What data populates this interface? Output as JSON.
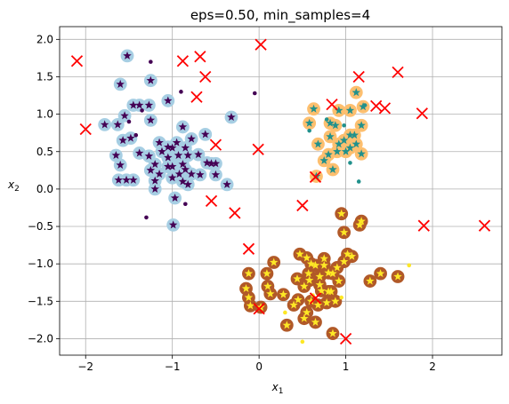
{
  "chart_data": {
    "type": "scatter",
    "title": "eps=0.50, min_samples=4",
    "xlabel": "x",
    "xlabel_sub": "1",
    "ylabel": "x",
    "ylabel_sub": "2",
    "xlim": [
      -2.3,
      2.8
    ],
    "ylim": [
      -2.22,
      2.17
    ],
    "xticks": [
      -2,
      -1,
      0,
      1,
      2
    ],
    "yticks": [
      -2.0,
      -1.5,
      -1.0,
      -0.5,
      0.0,
      0.5,
      1.0,
      1.5,
      2.0
    ],
    "xtick_labels": [
      "−2",
      "−1",
      "0",
      "1",
      "2"
    ],
    "ytick_labels": [
      "−2.0",
      "−1.5",
      "−1.0",
      "−0.5",
      "0.0",
      "0.5",
      "1.0",
      "1.5",
      "2.0"
    ],
    "grid": true,
    "colors": {
      "cluster0_halo": "#a6cee3",
      "cluster0_point": "#440154",
      "cluster1_halo": "#fdbf6f",
      "cluster1_point": "#21918c",
      "cluster2_halo": "#b15928",
      "cluster2_point": "#fde725",
      "anomaly": "#ff0000"
    },
    "clusters": [
      {
        "core": [
          [
            -1.52,
            1.78
          ],
          [
            -1.6,
            1.4
          ],
          [
            -1.25,
            1.45
          ],
          [
            -1.78,
            0.86
          ],
          [
            -1.63,
            0.86
          ],
          [
            -1.55,
            0.98
          ],
          [
            -1.45,
            1.12
          ],
          [
            -1.38,
            1.12
          ],
          [
            -1.27,
            1.12
          ],
          [
            -1.25,
            0.92
          ],
          [
            -1.05,
            1.18
          ],
          [
            -1.48,
            0.68
          ],
          [
            -1.57,
            0.65
          ],
          [
            -1.65,
            0.45
          ],
          [
            -1.6,
            0.32
          ],
          [
            -1.62,
            0.12
          ],
          [
            -1.53,
            0.12
          ],
          [
            -1.45,
            0.12
          ],
          [
            -1.27,
            0.44
          ],
          [
            -1.2,
            0.33
          ],
          [
            -1.15,
            0.62
          ],
          [
            -1.12,
            0.5
          ],
          [
            -1.05,
            0.56
          ],
          [
            -1.0,
            0.55
          ],
          [
            -0.95,
            0.62
          ],
          [
            -0.93,
            0.45
          ],
          [
            -0.88,
            0.33
          ],
          [
            -0.85,
            0.26
          ],
          [
            -0.82,
            0.45
          ],
          [
            -0.7,
            0.46
          ],
          [
            -0.78,
            0.67
          ],
          [
            -0.88,
            0.83
          ],
          [
            -0.62,
            0.73
          ],
          [
            -0.6,
            0.35
          ],
          [
            -0.55,
            0.34
          ],
          [
            -0.5,
            0.34
          ],
          [
            -0.5,
            0.19
          ],
          [
            -0.68,
            0.19
          ],
          [
            -0.88,
            0.1
          ],
          [
            -0.82,
            0.06
          ],
          [
            -1.05,
            0.3
          ],
          [
            -1.0,
            0.15
          ],
          [
            -0.97,
            -0.12
          ],
          [
            -0.99,
            -0.48
          ],
          [
            -1.2,
            0.11
          ],
          [
            -1.2,
            0.0
          ],
          [
            -0.32,
            0.96
          ],
          [
            -0.37,
            0.06
          ],
          [
            -1.05,
            0.42
          ],
          [
            -1.38,
            0.48
          ],
          [
            -1.15,
            0.2
          ],
          [
            -0.78,
            0.2
          ],
          [
            -1.0,
            0.3
          ],
          [
            -0.92,
            0.2
          ],
          [
            -1.25,
            0.25
          ],
          [
            -0.85,
            0.55
          ]
        ],
        "non_core": [
          [
            -1.25,
            1.7
          ],
          [
            -1.35,
            1.05
          ],
          [
            -0.9,
            1.3
          ],
          [
            -0.05,
            1.28
          ],
          [
            -1.5,
            0.9
          ],
          [
            -1.42,
            0.72
          ],
          [
            -1.3,
            -0.38
          ],
          [
            -0.85,
            -0.2
          ]
        ]
      },
      {
        "core": [
          [
            0.58,
            0.88
          ],
          [
            0.63,
            1.07
          ],
          [
            0.82,
            0.88
          ],
          [
            0.88,
            0.85
          ],
          [
            0.92,
            1.05
          ],
          [
            1.05,
            1.05
          ],
          [
            1.12,
            1.29
          ],
          [
            1.2,
            1.1
          ],
          [
            1.18,
            0.85
          ],
          [
            1.05,
            0.72
          ],
          [
            0.82,
            0.7
          ],
          [
            0.98,
            0.65
          ],
          [
            0.92,
            0.6
          ],
          [
            0.9,
            0.5
          ],
          [
            1.0,
            0.5
          ],
          [
            1.05,
            0.55
          ],
          [
            1.12,
            0.6
          ],
          [
            1.18,
            0.47
          ],
          [
            0.8,
            0.46
          ],
          [
            0.75,
            0.38
          ],
          [
            0.68,
            0.6
          ],
          [
            0.66,
            0.17
          ],
          [
            0.85,
            0.26
          ],
          [
            1.1,
            0.72
          ]
        ],
        "non_core": [
          [
            0.98,
            0.85
          ],
          [
            1.15,
            0.1
          ],
          [
            0.58,
            0.78
          ],
          [
            1.22,
            1.12
          ],
          [
            0.78,
            0.93
          ],
          [
            1.05,
            0.35
          ]
        ]
      },
      {
        "core": [
          [
            0.17,
            -0.98
          ],
          [
            -0.12,
            -1.13
          ],
          [
            0.09,
            -1.13
          ],
          [
            0.1,
            -1.3
          ],
          [
            -0.15,
            -1.33
          ],
          [
            -0.12,
            -1.45
          ],
          [
            -0.1,
            -1.56
          ],
          [
            0.02,
            -1.58
          ],
          [
            0.13,
            -1.4
          ],
          [
            0.28,
            -1.41
          ],
          [
            0.4,
            -1.55
          ],
          [
            0.45,
            -1.48
          ],
          [
            0.32,
            -1.82
          ],
          [
            0.47,
            -0.87
          ],
          [
            0.55,
            -0.92
          ],
          [
            0.65,
            -1.02
          ],
          [
            0.57,
            -1.13
          ],
          [
            0.7,
            -1.17
          ],
          [
            0.75,
            -1.02
          ],
          [
            0.75,
            -0.93
          ],
          [
            0.8,
            -1.12
          ],
          [
            0.85,
            -1.13
          ],
          [
            0.92,
            -1.23
          ],
          [
            0.98,
            -0.97
          ],
          [
            1.02,
            -0.87
          ],
          [
            1.07,
            -0.9
          ],
          [
            1.18,
            -0.43
          ],
          [
            1.16,
            -0.48
          ],
          [
            0.98,
            -0.58
          ],
          [
            0.95,
            -0.33
          ],
          [
            0.8,
            -1.37
          ],
          [
            0.83,
            -1.37
          ],
          [
            0.88,
            -1.5
          ],
          [
            0.78,
            -1.52
          ],
          [
            0.68,
            -1.55
          ],
          [
            0.6,
            -1.5
          ],
          [
            0.55,
            -1.65
          ],
          [
            0.52,
            -1.73
          ],
          [
            0.65,
            -1.78
          ],
          [
            0.85,
            -1.93
          ],
          [
            1.4,
            -1.13
          ],
          [
            1.6,
            -1.17
          ],
          [
            1.28,
            -1.23
          ],
          [
            0.52,
            -1.3
          ],
          [
            0.58,
            -1.22
          ],
          [
            0.7,
            -1.28
          ],
          [
            0.6,
            -1.0
          ],
          [
            0.72,
            -1.36
          ],
          [
            0.9,
            -1.05
          ],
          [
            0.44,
            -1.2
          ]
        ],
        "non_core": [
          [
            0.5,
            -2.04
          ],
          [
            1.73,
            -1.02
          ],
          [
            0.95,
            -1.45
          ],
          [
            0.3,
            -1.65
          ],
          [
            0.62,
            -1.42
          ]
        ]
      }
    ],
    "anomalies": [
      [
        -2.1,
        1.71
      ],
      [
        -2.0,
        0.8
      ],
      [
        -0.88,
        1.71
      ],
      [
        -0.68,
        1.77
      ],
      [
        -0.62,
        1.5
      ],
      [
        -0.72,
        1.23
      ],
      [
        0.02,
        1.93
      ],
      [
        -0.5,
        0.59
      ],
      [
        -0.55,
        -0.16
      ],
      [
        -0.28,
        -0.32
      ],
      [
        -0.01,
        0.53
      ],
      [
        -0.12,
        -0.8
      ],
      [
        0.0,
        -1.6
      ],
      [
        0.5,
        -0.22
      ],
      [
        0.65,
        0.16
      ],
      [
        0.65,
        -1.46
      ],
      [
        1.0,
        -2.0
      ],
      [
        0.84,
        1.13
      ],
      [
        1.15,
        1.5
      ],
      [
        1.6,
        1.56
      ],
      [
        1.35,
        1.11
      ],
      [
        1.45,
        1.08
      ],
      [
        1.88,
        1.01
      ],
      [
        1.9,
        -0.49
      ],
      [
        2.6,
        -0.49
      ]
    ]
  }
}
